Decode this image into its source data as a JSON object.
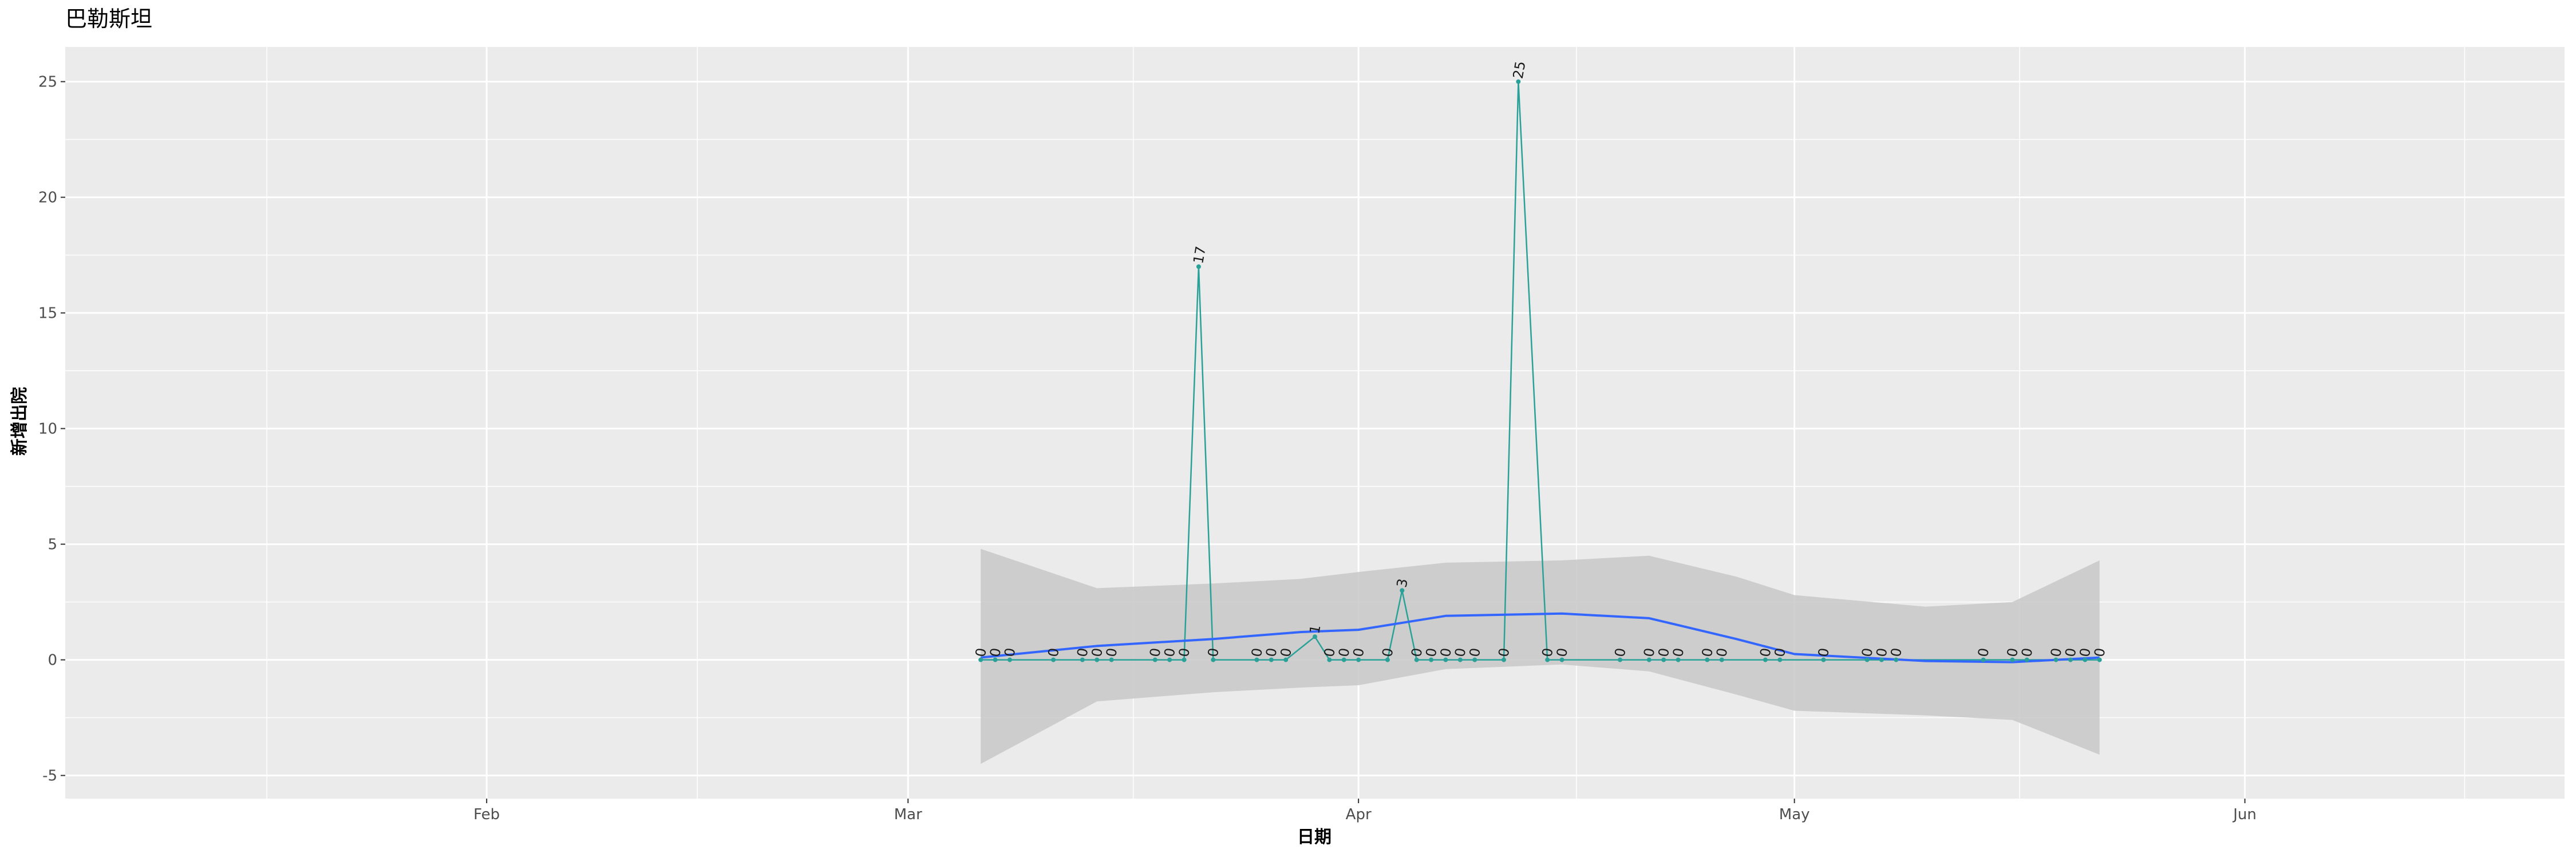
{
  "chart_data": {
    "type": "line",
    "title": "巴勒斯坦",
    "xlabel": "日期",
    "ylabel": "新增出院",
    "ylim": [
      -6,
      26.5
    ],
    "yticks": [
      -5,
      0,
      5,
      10,
      15,
      20,
      25
    ],
    "xlim": [
      "2020-01-03",
      "2020-06-23"
    ],
    "x_ticks": [
      {
        "date": "2020-02-01",
        "label": "Feb"
      },
      {
        "date": "2020-03-01",
        "label": "Mar"
      },
      {
        "date": "2020-04-01",
        "label": "Apr"
      },
      {
        "date": "2020-05-01",
        "label": "May"
      },
      {
        "date": "2020-06-01",
        "label": "Jun"
      }
    ],
    "grid": true,
    "colors": {
      "panel": "#EBEBEB",
      "grid": "#FFFFFF",
      "line": "#2AA198",
      "smooth": "#3366FF",
      "ribbon": "#C8C8C8",
      "label": "#1A1A1A"
    },
    "series": [
      {
        "x": [
          "2020-03-06",
          "2020-03-07",
          "2020-03-08",
          "2020-03-11",
          "2020-03-13",
          "2020-03-14",
          "2020-03-15",
          "2020-03-18",
          "2020-03-19",
          "2020-03-20",
          "2020-03-21",
          "2020-03-22",
          "2020-03-25",
          "2020-03-26",
          "2020-03-27",
          "2020-03-29",
          "2020-03-30",
          "2020-03-31",
          "2020-04-01",
          "2020-04-03",
          "2020-04-04",
          "2020-04-05",
          "2020-04-06",
          "2020-04-07",
          "2020-04-08",
          "2020-04-09",
          "2020-04-11",
          "2020-04-12",
          "2020-04-14",
          "2020-04-15",
          "2020-04-19",
          "2020-04-21",
          "2020-04-22",
          "2020-04-23",
          "2020-04-25",
          "2020-04-26",
          "2020-04-29",
          "2020-04-30",
          "2020-05-03",
          "2020-05-06",
          "2020-05-07",
          "2020-05-08",
          "2020-05-14",
          "2020-05-16",
          "2020-05-17",
          "2020-05-19",
          "2020-05-20",
          "2020-05-21",
          "2020-05-22"
        ],
        "y": [
          0,
          0,
          0,
          0,
          0,
          0,
          0,
          0,
          0,
          0,
          17,
          0,
          0,
          0,
          0,
          1,
          0,
          0,
          0,
          0,
          3,
          0,
          0,
          0,
          0,
          0,
          0,
          25,
          0,
          0,
          0,
          0,
          0,
          0,
          0,
          0,
          0,
          0,
          0,
          0,
          0,
          0,
          0,
          0,
          0,
          0,
          0,
          0,
          0
        ],
        "labels": [
          "0",
          "0",
          "0",
          "0",
          "0",
          "0",
          "0",
          "0",
          "0",
          "0",
          "17",
          "0",
          "0",
          "0",
          "0",
          "1",
          "0",
          "0",
          "0",
          "0",
          "3",
          "0",
          "0",
          "0",
          "0",
          "0",
          "0",
          "25",
          "0",
          "0",
          "0",
          "0",
          "0",
          "0",
          "0",
          "0",
          "0",
          "0",
          "0",
          "0",
          "0",
          "0",
          "0",
          "0",
          "0",
          "0",
          "0",
          "0",
          "0"
        ]
      }
    ],
    "smooth": {
      "x": [
        "2020-03-06",
        "2020-03-14",
        "2020-03-22",
        "2020-03-28",
        "2020-04-01",
        "2020-04-07",
        "2020-04-15",
        "2020-04-21",
        "2020-04-27",
        "2020-05-01",
        "2020-05-10",
        "2020-05-16",
        "2020-05-22"
      ],
      "y": [
        0.1,
        0.6,
        0.9,
        1.2,
        1.3,
        1.9,
        2.0,
        1.8,
        0.9,
        0.25,
        -0.05,
        -0.1,
        0.1
      ],
      "lower": [
        -4.5,
        -1.8,
        -1.4,
        -1.2,
        -1.1,
        -0.4,
        -0.2,
        -0.5,
        -1.5,
        -2.2,
        -2.4,
        -2.6,
        -4.1
      ],
      "upper": [
        4.8,
        3.1,
        3.3,
        3.5,
        3.8,
        4.2,
        4.3,
        4.5,
        3.6,
        2.8,
        2.3,
        2.5,
        4.3
      ]
    }
  }
}
